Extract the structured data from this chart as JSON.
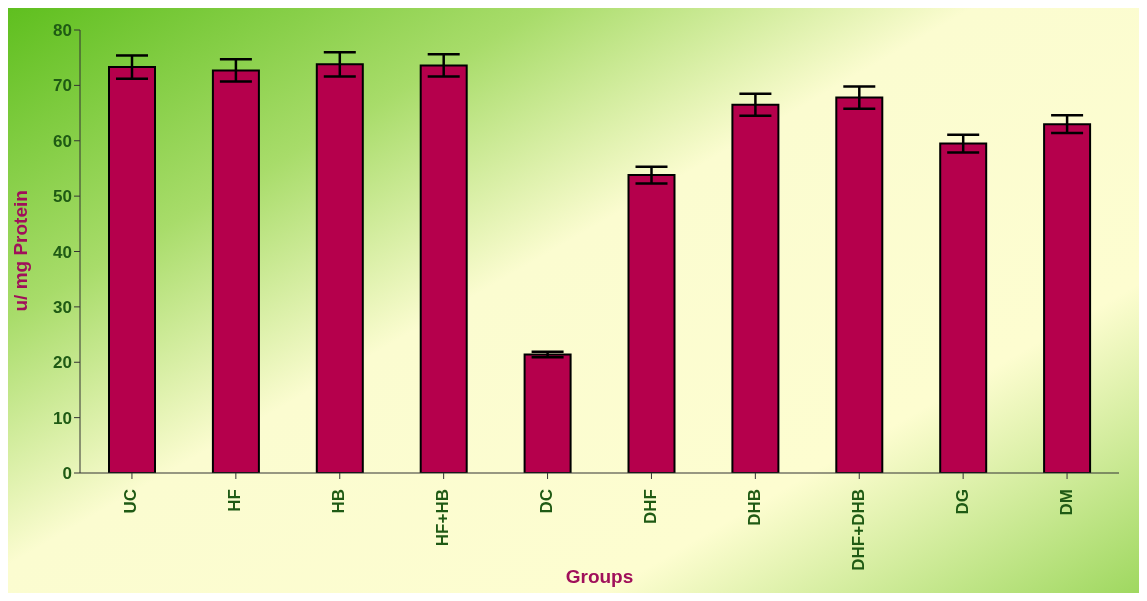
{
  "chart_data": {
    "type": "bar",
    "xlabel": "Groups",
    "ylabel": "u/ mg Protein",
    "categories": [
      "UC",
      "HF",
      "HB",
      "HF+HB",
      "DC",
      "DHF",
      "DHB",
      "DHF+DHB",
      "DG",
      "DM"
    ],
    "values": [
      73.3,
      72.7,
      73.8,
      73.6,
      21.4,
      53.8,
      66.5,
      67.8,
      59.5,
      63
    ],
    "errors": [
      2.1,
      2,
      2.2,
      2,
      0.5,
      1.5,
      2,
      2,
      1.6,
      1.6
    ],
    "color": "#b5004c",
    "ylim": [
      0,
      80
    ],
    "yticks": [
      0,
      10,
      20,
      30,
      40,
      50,
      60,
      70,
      80
    ],
    "grid": false,
    "legend": false
  }
}
